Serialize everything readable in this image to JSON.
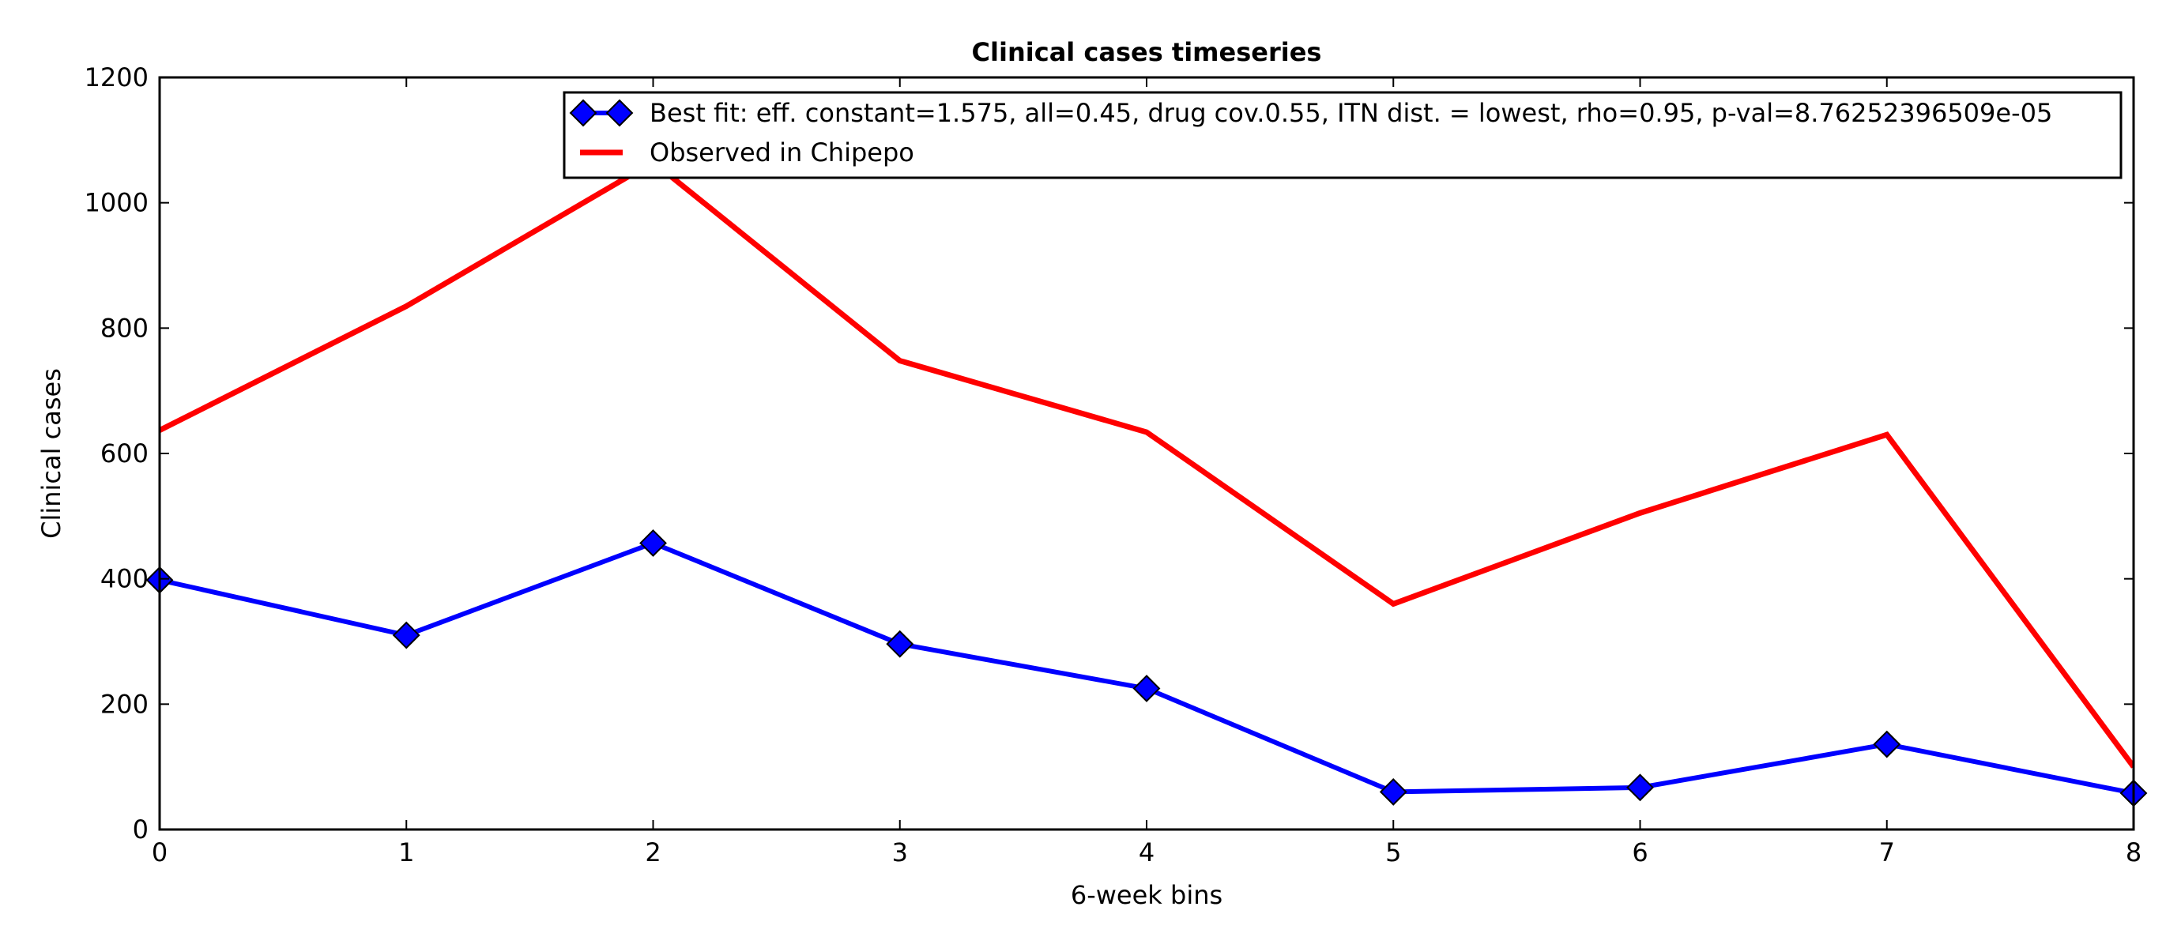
{
  "chart_data": {
    "type": "line",
    "title": "Clinical cases timeseries",
    "xlabel": "6-week bins",
    "ylabel": "Clinical cases",
    "xlim": [
      0,
      8
    ],
    "ylim": [
      0,
      1200
    ],
    "x": [
      0,
      1,
      2,
      3,
      4,
      5,
      6,
      7,
      8
    ],
    "xticks": [
      "0",
      "1",
      "2",
      "3",
      "4",
      "5",
      "6",
      "7",
      "8"
    ],
    "yticks": [
      "0",
      "200",
      "400",
      "600",
      "800",
      "1000",
      "1200"
    ],
    "grid": false,
    "legend_position": "top-right",
    "series": [
      {
        "name": "Best fit: eff. constant=1.575, all=0.45, drug cov.0.55, ITN dist. = lowest, rho=0.95, p-val=8.76252396509e-05",
        "values": [
          398,
          310,
          457,
          296,
          225,
          60,
          67,
          136,
          58
        ],
        "color": "#0000ff",
        "marker": "diamond"
      },
      {
        "name": "Observed in Chipepo",
        "values": [
          637,
          835,
          1065,
          748,
          634,
          360,
          505,
          630,
          100
        ],
        "color": "#ff0000",
        "marker": "none"
      }
    ]
  }
}
